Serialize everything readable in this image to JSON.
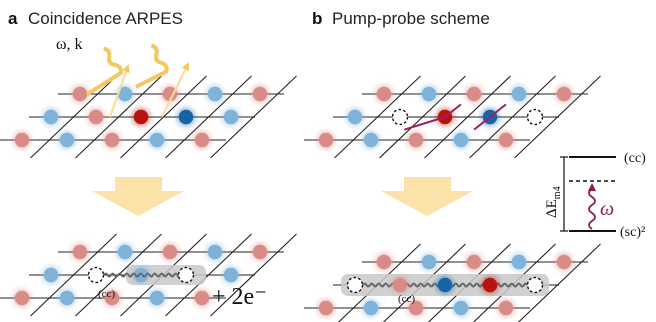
{
  "panel_a": {
    "letter": "a",
    "title": "Coincidence ARPES",
    "photon_label": "ω, k",
    "cc_label": "(cc)",
    "electrons_label": "+ 2e⁻"
  },
  "panel_b": {
    "letter": "b",
    "title": "Pump-probe scheme",
    "cc_label": "(cc)",
    "energy_axis_label": "ΔE",
    "energy_axis_sub": "m4",
    "upper_level_label": "(cc)",
    "lower_level_label": "(sc)²",
    "omega_label": "ω"
  },
  "colors": {
    "red_site": "#d98b87",
    "blue_site": "#7fb2d8",
    "dark_red": "#b8140e",
    "dark_blue": "#1663a6",
    "photon": "#f4c761",
    "arrow": "#fbdc98",
    "bond": "#9c1f5b",
    "level_wave": "#8c1b57"
  }
}
